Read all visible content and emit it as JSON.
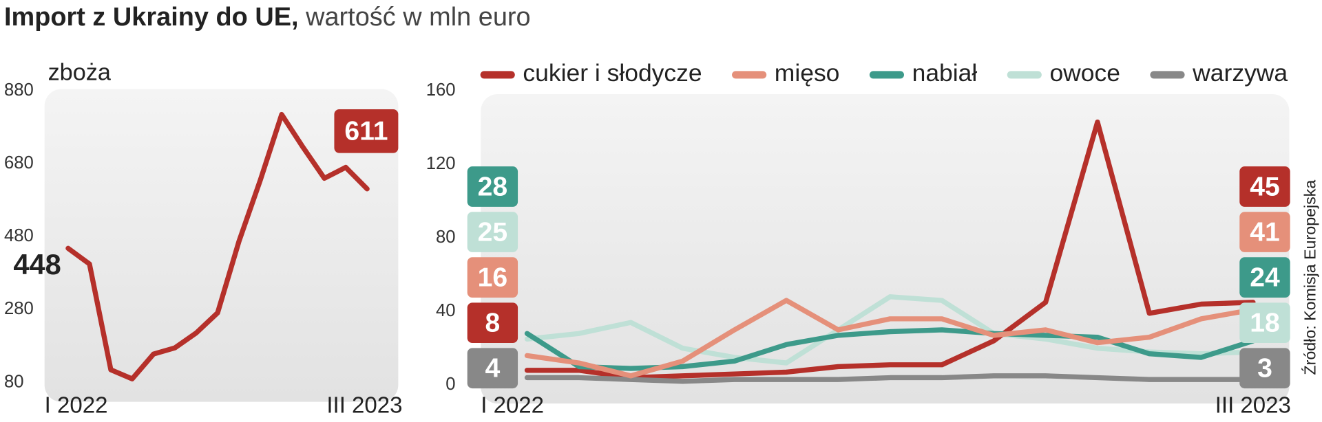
{
  "title": "Import z Ukrainy do UE,",
  "subtitle": "wartość w mln euro",
  "source": "Źródło: Komisja Europejska",
  "chart_data": [
    {
      "type": "line",
      "title": "zboża",
      "categories": [
        "I 2022",
        null,
        null,
        null,
        null,
        null,
        null,
        null,
        null,
        null,
        null,
        null,
        null,
        null,
        "III 2023"
      ],
      "values": [
        448,
        405,
        115,
        90,
        158,
        175,
        216,
        271,
        467,
        635,
        815,
        725,
        640,
        670,
        611
      ],
      "color": "#b5302a",
      "ylim": [
        80,
        880
      ],
      "yticks": [
        80,
        280,
        480,
        680,
        880
      ],
      "grid": false
    },
    {
      "type": "line",
      "categories": [
        "I 2022",
        null,
        null,
        null,
        null,
        null,
        null,
        null,
        null,
        null,
        null,
        null,
        null,
        null,
        "III 2023"
      ],
      "series": [
        {
          "name": "cukier i słodycze",
          "color": "#b5302a",
          "values": [
            8,
            8,
            4,
            5,
            6,
            7,
            10,
            11,
            11,
            24,
            45,
            143,
            39,
            44,
            45
          ]
        },
        {
          "name": "mięso",
          "color": "#e5907a",
          "values": [
            16,
            12,
            5,
            13,
            30,
            46,
            30,
            36,
            36,
            27,
            30,
            23,
            26,
            36,
            41
          ]
        },
        {
          "name": "nabiał",
          "color": "#3d9a8a",
          "values": [
            28,
            10,
            9,
            10,
            13,
            22,
            27,
            29,
            30,
            28,
            27,
            26,
            17,
            15,
            24
          ]
        },
        {
          "name": "owoce",
          "color": "#bfe0d6",
          "values": [
            25,
            28,
            34,
            20,
            15,
            12,
            30,
            48,
            46,
            28,
            25,
            20,
            18,
            17,
            18
          ]
        },
        {
          "name": "warzywa",
          "color": "#888888",
          "values": [
            4,
            4,
            3,
            2,
            3,
            3,
            3,
            4,
            4,
            5,
            5,
            4,
            3,
            3,
            3
          ]
        }
      ],
      "ylim": [
        0,
        160
      ],
      "yticks": [
        0,
        40,
        80,
        120,
        160
      ],
      "grid": false,
      "legend": "top"
    }
  ]
}
